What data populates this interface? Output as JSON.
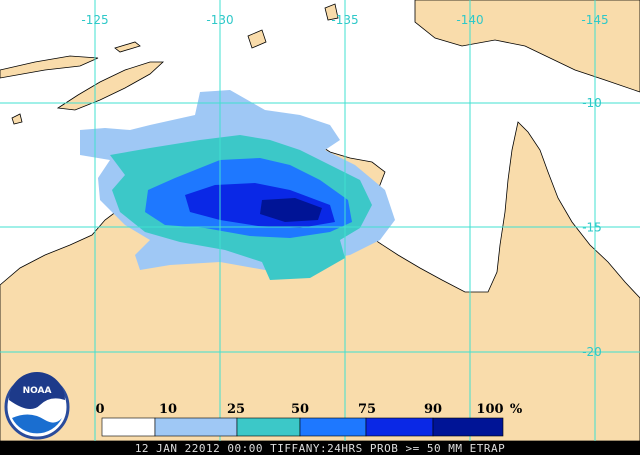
{
  "map": {
    "longitude_labels": [
      "-125",
      "-130",
      "-135",
      "-140",
      "-145"
    ],
    "latitude_labels": [
      "-10",
      "-15",
      "-20"
    ],
    "legend": {
      "labels": [
        "0",
        "10",
        "25",
        "50",
        "75",
        "90",
        "100"
      ],
      "unit": "%",
      "colors": [
        "#ffffff",
        "#9fc8f5",
        "#3cc8c8",
        "#1e78ff",
        "#0a28e6",
        "#001496"
      ]
    },
    "logo": "NOAA",
    "footer": "12 JAN 22012 00:00 TIFFANY:24HRS PROB >= 50 MM ETRAP"
  }
}
